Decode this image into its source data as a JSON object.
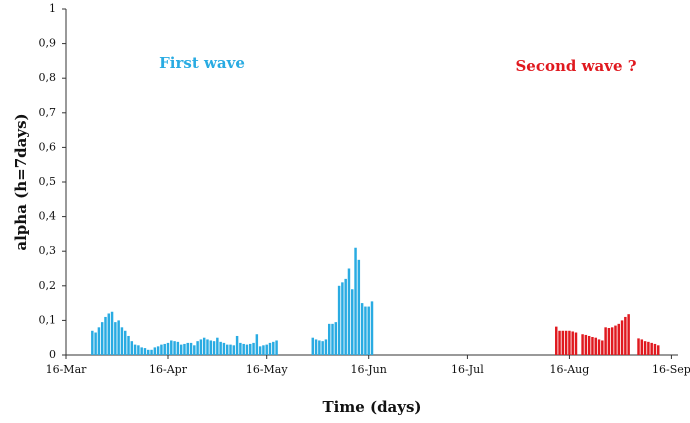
{
  "chart_data": {
    "type": "bar",
    "y_label": "alpha (h=7days)",
    "x_label": "Time (days)",
    "annotations": [
      {
        "text": "First wave",
        "color": "#29abe2"
      },
      {
        "text": "Second wave ?",
        "color": "#e0191f"
      }
    ],
    "xlim": [
      0,
      186
    ],
    "xticks": [
      {
        "value": 0,
        "label": "16-Mar"
      },
      {
        "value": 31,
        "label": "16-Apr"
      },
      {
        "value": 61,
        "label": "16-May"
      },
      {
        "value": 92,
        "label": "16-Jun"
      },
      {
        "value": 122,
        "label": "16-Jul"
      },
      {
        "value": 153,
        "label": "16-Aug"
      },
      {
        "value": 184,
        "label": "16-Sep"
      }
    ],
    "ylim": [
      0,
      1
    ],
    "yticks": [
      0,
      {
        "value": 0.1,
        "label": "0,1"
      },
      {
        "value": 0.2,
        "label": "0,2"
      },
      {
        "value": 0.3,
        "label": "0,3"
      },
      {
        "value": 0.4,
        "label": "0,4"
      },
      {
        "value": 0.5,
        "label": "0,5"
      },
      {
        "value": 0.6,
        "label": "0,6"
      },
      {
        "value": 0.7,
        "label": "0,7"
      },
      {
        "value": 0.8,
        "label": "0,8"
      },
      {
        "value": 0.9,
        "label": "0,9"
      },
      1
    ],
    "grid": false,
    "series": [
      {
        "color": "#29abe2",
        "x": [
          8,
          9,
          10,
          11,
          12,
          13,
          14,
          15,
          16,
          17,
          18,
          19,
          20,
          21,
          22,
          23,
          24,
          25,
          26,
          27,
          28,
          29,
          30,
          31,
          32,
          33,
          34,
          35,
          36,
          37,
          38,
          39,
          40,
          41,
          42,
          43,
          44,
          45,
          46,
          47,
          48,
          49,
          50,
          51,
          52,
          53,
          54,
          55,
          56,
          57,
          58,
          59,
          60,
          61,
          62,
          63,
          64,
          75,
          76,
          77,
          78,
          79,
          80,
          81,
          82,
          83,
          84,
          85,
          86,
          87,
          88,
          89,
          90,
          91,
          92,
          93
        ],
        "values": [
          0.07,
          0.065,
          0.08,
          0.095,
          0.11,
          0.12,
          0.125,
          0.095,
          0.1,
          0.08,
          0.07,
          0.055,
          0.04,
          0.03,
          0.028,
          0.022,
          0.02,
          0.015,
          0.015,
          0.022,
          0.025,
          0.03,
          0.032,
          0.035,
          0.042,
          0.04,
          0.038,
          0.03,
          0.032,
          0.035,
          0.035,
          0.028,
          0.04,
          0.045,
          0.05,
          0.045,
          0.042,
          0.04,
          0.05,
          0.038,
          0.035,
          0.03,
          0.03,
          0.028,
          0.055,
          0.035,
          0.032,
          0.03,
          0.032,
          0.035,
          0.06,
          0.025,
          0.028,
          0.03,
          0.035,
          0.038,
          0.042,
          0.05,
          0.045,
          0.042,
          0.04,
          0.045,
          0.09,
          0.09,
          0.095,
          0.2,
          0.21,
          0.22,
          0.25,
          0.19,
          0.31,
          0.275,
          0.15,
          0.14,
          0.14,
          0.155
        ]
      },
      {
        "color": "#e0191f",
        "x": [
          149,
          150,
          151,
          152,
          153,
          154,
          155,
          157,
          158,
          159,
          160,
          161,
          162,
          163,
          164,
          165,
          166,
          167,
          168,
          169,
          170,
          171,
          174,
          175,
          176,
          177,
          178,
          179,
          180
        ],
        "values": [
          0.082,
          0.07,
          0.07,
          0.07,
          0.07,
          0.068,
          0.065,
          0.06,
          0.058,
          0.055,
          0.052,
          0.05,
          0.045,
          0.042,
          0.08,
          0.078,
          0.08,
          0.085,
          0.09,
          0.1,
          0.11,
          0.118,
          0.048,
          0.045,
          0.04,
          0.038,
          0.035,
          0.032,
          0.028
        ]
      }
    ]
  }
}
